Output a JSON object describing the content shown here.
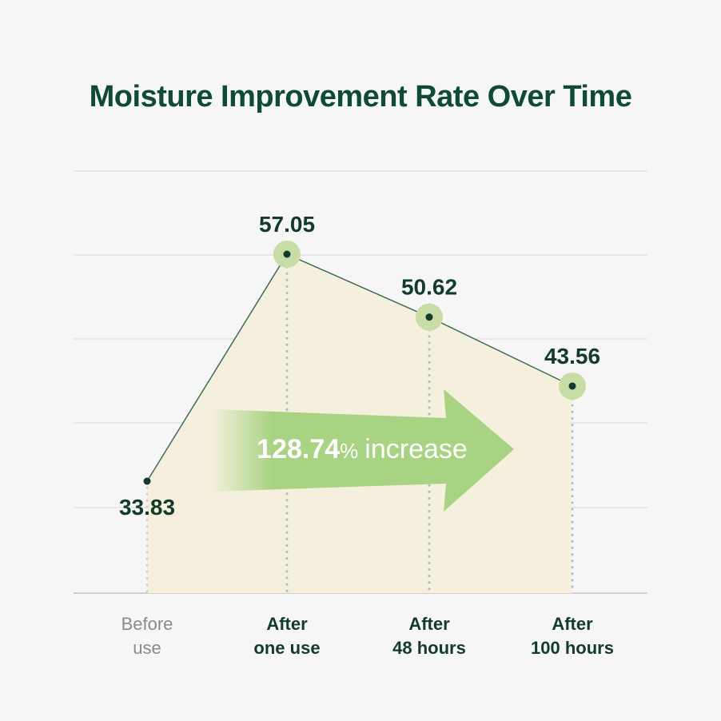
{
  "chart_data": {
    "type": "line",
    "title": "Moisture Improvement Rate Over Time",
    "categories": [
      [
        "Before",
        "use"
      ],
      [
        "After",
        "one use"
      ],
      [
        "After",
        "48 hours"
      ],
      [
        "After",
        "100 hours"
      ]
    ],
    "values": [
      33.83,
      57.05,
      50.62,
      43.56
    ],
    "value_labels": [
      "33.83",
      "57.05",
      "50.62",
      "43.56"
    ],
    "annotation": {
      "number": "128.74",
      "percent": "%",
      "text": "increase"
    },
    "grid": true,
    "xlabel": "",
    "ylabel": ""
  },
  "colors": {
    "title": "#0f4a35",
    "line": "#3f6b57",
    "area": "#f4f0dd",
    "marker_halo": "#c8dca5",
    "arrow": "#a8d383",
    "grid": "#e2e2e2"
  }
}
